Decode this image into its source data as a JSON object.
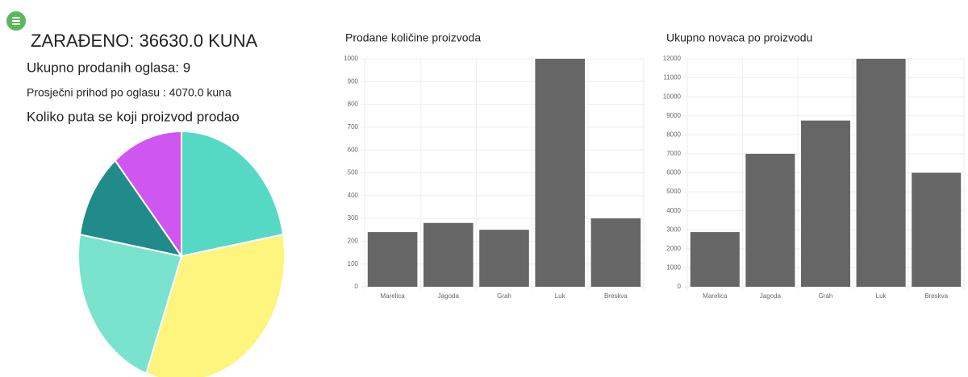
{
  "header": {
    "title": "ZARAĐENO: 36630.0 KUNA",
    "total_ads": "Ukupno prodanih oglasa: 9",
    "average": "Prosječni prihod po oglasu : 4070.0 kuna"
  },
  "chart_data": [
    {
      "type": "pie",
      "title": "Koliko puta se koji proizvod prodao",
      "values": [
        2,
        3,
        2,
        1,
        1
      ],
      "colors": [
        "#55d9c5",
        "#fdf57d",
        "#7ae3cd",
        "#218a8a",
        "#cf56f0"
      ]
    },
    {
      "type": "bar",
      "title": "Prodane količine proizvoda",
      "categories": [
        "Marelica",
        "Jagoda",
        "Grah",
        "Luk",
        "Breskva"
      ],
      "values": [
        240,
        280,
        250,
        1000,
        300
      ],
      "color": "#666666",
      "ylim": [
        0,
        1000
      ],
      "yticks": [
        0,
        100,
        200,
        300,
        400,
        500,
        600,
        700,
        800,
        900,
        1000
      ],
      "grid": true
    },
    {
      "type": "bar",
      "title": "Ukupno novaca po proizvodu",
      "categories": [
        "Marelica",
        "Jagoda",
        "Grah",
        "Luk",
        "Breskva"
      ],
      "values": [
        2880,
        7000,
        8750,
        12000,
        6000
      ],
      "color": "#666666",
      "ylim": [
        0,
        12000
      ],
      "yticks": [
        0,
        1000,
        2000,
        3000,
        4000,
        5000,
        6000,
        7000,
        8000,
        9000,
        10000,
        11000,
        12000
      ],
      "grid": true
    }
  ]
}
